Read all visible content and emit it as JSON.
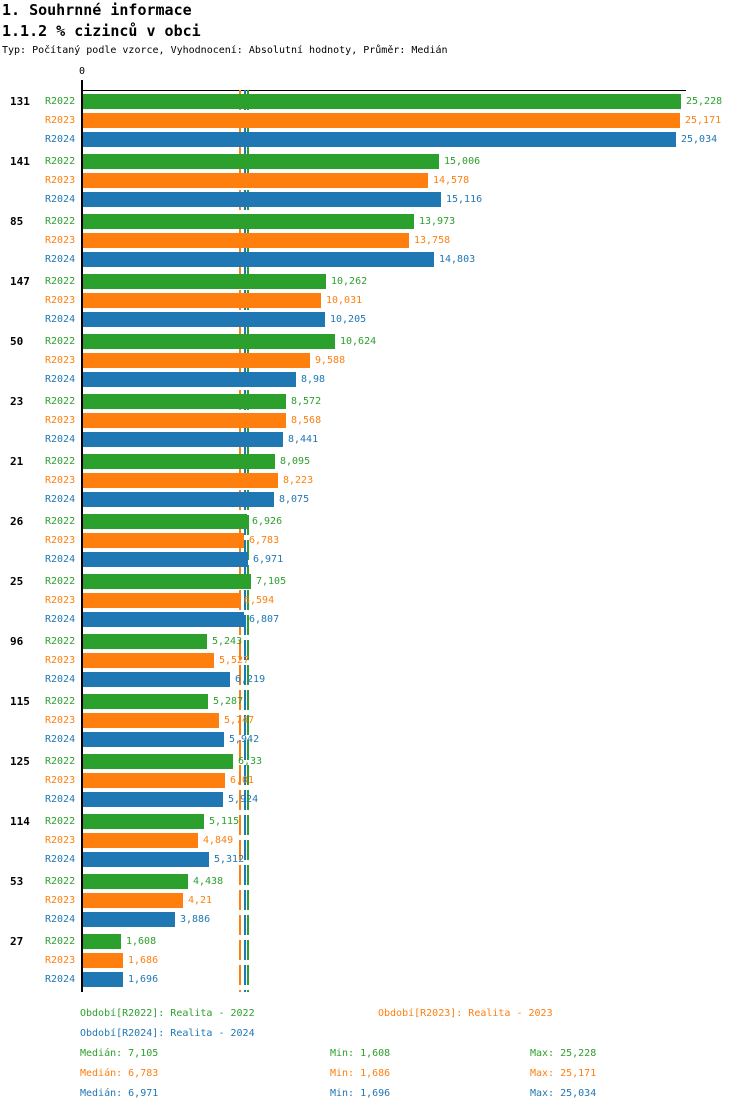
{
  "header": {
    "title1": "1. Souhrnné informace",
    "title2": "1.1.2 % cizinců v obci",
    "subtitle": "Typ: Počítaný podle vzorce, Vyhodnocení: Absolutní hodnoty, Průměr: Medián"
  },
  "colors": {
    "R2022": "#2ca02c",
    "R2023": "#ff7f0e",
    "R2024": "#1f77b4",
    "axis": "#000000"
  },
  "chart_data": {
    "type": "bar",
    "orientation": "horizontal",
    "title": "1.1.2 % cizinců v obci",
    "x_origin_label": "0",
    "xlim": [
      0,
      25.5
    ],
    "grid": false,
    "legend_position": "bottom",
    "categories": [
      "131",
      "141",
      "85",
      "147",
      "50",
      "23",
      "21",
      "26",
      "25",
      "96",
      "115",
      "125",
      "114",
      "53",
      "27"
    ],
    "series": [
      {
        "name": "R2022",
        "color": "#2ca02c",
        "values": [
          25.228,
          15.006,
          13.973,
          10.262,
          10.624,
          8.572,
          8.095,
          6.926,
          7.105,
          5.243,
          5.287,
          6.33,
          5.115,
          4.438,
          1.608
        ],
        "labels": [
          "25,228",
          "15,006",
          "13,973",
          "10,262",
          "10,624",
          "8,572",
          "8,095",
          "6,926",
          "7,105",
          "5,243",
          "5,287",
          "6,33",
          "5,115",
          "4,438",
          "1,608"
        ]
      },
      {
        "name": "R2023",
        "color": "#ff7f0e",
        "values": [
          25.171,
          14.578,
          13.758,
          10.031,
          9.588,
          8.568,
          8.223,
          6.783,
          6.594,
          5.527,
          5.747,
          6.01,
          4.849,
          4.21,
          1.686
        ],
        "labels": [
          "25,171",
          "14,578",
          "13,758",
          "10,031",
          "9,588",
          "8,568",
          "8,223",
          "6,783",
          "6,594",
          "5,527",
          "5,747",
          "6,01",
          "4,849",
          "4,21",
          "1,686"
        ]
      },
      {
        "name": "R2024",
        "color": "#1f77b4",
        "values": [
          25.034,
          15.116,
          14.803,
          10.205,
          8.98,
          8.441,
          8.075,
          6.971,
          6.807,
          6.219,
          5.942,
          5.924,
          5.312,
          3.886,
          1.696
        ],
        "labels": [
          "25,034",
          "15,116",
          "14,803",
          "10,205",
          "8,98",
          "8,441",
          "8,075",
          "6,971",
          "6,807",
          "6,219",
          "5,942",
          "5,924",
          "5,312",
          "3,886",
          "1,696"
        ]
      }
    ],
    "median_lines": [
      {
        "series": "R2023",
        "value": 6.783,
        "color": "#ff7f0e"
      },
      {
        "series": "R2024",
        "value": 6.971,
        "color": "#1f77b4"
      },
      {
        "series": "R2022",
        "value": 7.105,
        "color": "#2ca02c"
      }
    ]
  },
  "legend": {
    "items": [
      {
        "label": "Období[R2022]: Realita - 2022",
        "color": "#2ca02c"
      },
      {
        "label": "Období[R2024]: Realita - 2024",
        "color": "#1f77b4"
      },
      {
        "label": "Období[R2023]: Realita - 2023",
        "color": "#ff7f0e"
      }
    ]
  },
  "stats": {
    "rows": [
      {
        "median": "Medián: 7,105",
        "min": "Min: 1,608",
        "max": "Max: 25,228",
        "color": "#2ca02c"
      },
      {
        "median": "Medián: 6,783",
        "min": "Min: 1,686",
        "max": "Max: 25,171",
        "color": "#ff7f0e"
      },
      {
        "median": "Medián: 6,971",
        "min": "Min: 1,696",
        "max": "Max: 25,034",
        "color": "#1f77b4"
      }
    ]
  }
}
